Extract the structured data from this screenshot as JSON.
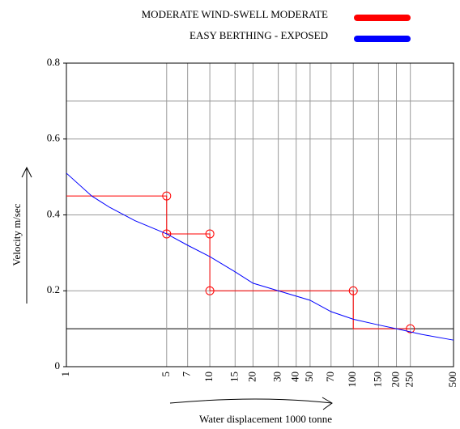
{
  "chart_data": {
    "type": "line",
    "xlabel": "Water displacement  1000 tonne",
    "ylabel": "Velocity m/sec",
    "xscale": "log",
    "xlim": [
      1,
      500
    ],
    "xticks": [
      1,
      5,
      7,
      10,
      15,
      20,
      30,
      40,
      50,
      70,
      100,
      150,
      200,
      250,
      500
    ],
    "ylim": [
      0,
      0.8
    ],
    "yticks": [
      0,
      0.2,
      0.4,
      0.6,
      0.8
    ],
    "ygrid": [
      0.1,
      0.2,
      0.4,
      0.6,
      0.7
    ],
    "reference_line": 0.1,
    "grid": true,
    "legend": "top-right",
    "series": [
      {
        "name": "MODERATE WIND-SWELL MODERATE",
        "color": "#ff0000",
        "x": [
          1,
          5,
          5,
          10,
          10,
          100,
          100,
          250
        ],
        "values": [
          0.45,
          0.45,
          0.35,
          0.35,
          0.2,
          0.2,
          0.1,
          0.1
        ],
        "markers": [
          false,
          true,
          true,
          true,
          true,
          true,
          false,
          true
        ]
      },
      {
        "name": "EASY BERTHING  - EXPOSED",
        "color": "#0000ff",
        "x": [
          1,
          1.5,
          2,
          3,
          5,
          7,
          10,
          15,
          20,
          30,
          50,
          70,
          100,
          150,
          200,
          300,
          500
        ],
        "values": [
          0.51,
          0.45,
          0.42,
          0.385,
          0.35,
          0.32,
          0.29,
          0.25,
          0.22,
          0.2,
          0.175,
          0.145,
          0.125,
          0.11,
          0.1,
          0.085,
          0.07
        ]
      }
    ]
  }
}
